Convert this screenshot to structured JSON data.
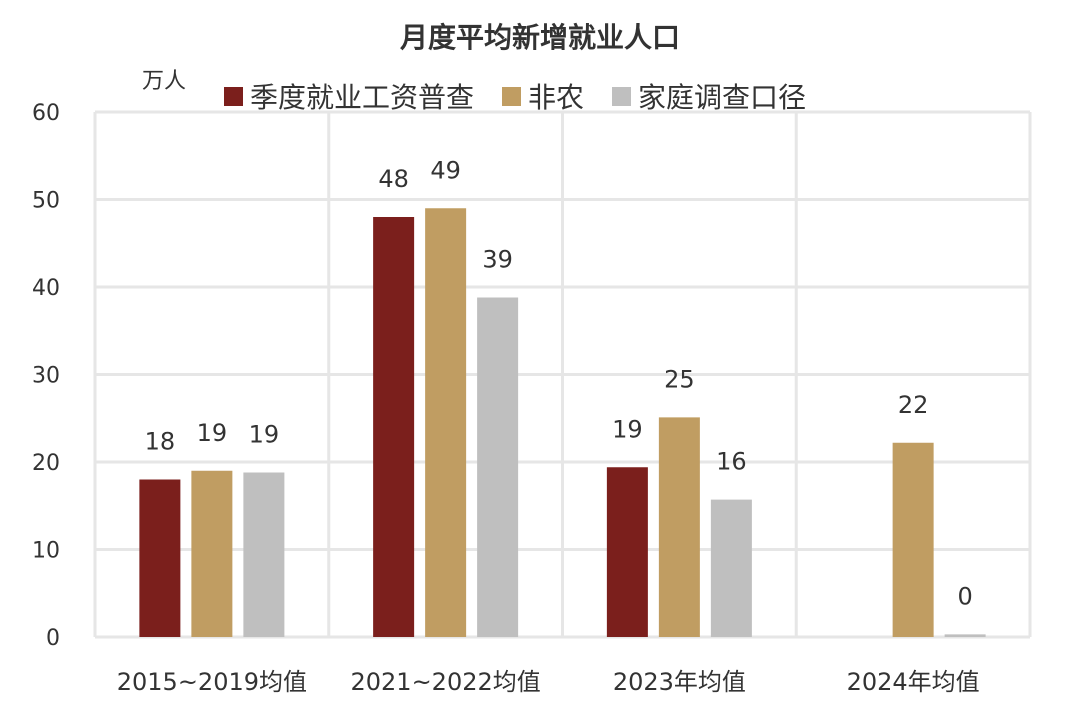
{
  "chart_data": {
    "type": "bar",
    "title": "月度平均新增就业人口",
    "ylabel": "万人",
    "ylim": [
      0,
      60
    ],
    "yticks": [
      0,
      10,
      20,
      30,
      40,
      50,
      60
    ],
    "categories": [
      "2015~2019均值",
      "2021~2022均值",
      "2023年均值",
      "2024年均值"
    ],
    "series": [
      {
        "name": "季度就业工资普查",
        "color": "#7B1F1C",
        "values": [
          18,
          48,
          19.4,
          null
        ],
        "labels": [
          "18",
          "48",
          "19",
          null
        ]
      },
      {
        "name": "非农",
        "color": "#C09D62",
        "values": [
          19,
          49,
          25.1,
          22.2
        ],
        "labels": [
          "19",
          "49",
          "25",
          "22"
        ]
      },
      {
        "name": "家庭调查口径",
        "color": "#BFBFBF",
        "values": [
          18.8,
          38.8,
          15.7,
          0.3
        ],
        "labels": [
          "19",
          "39",
          "16",
          "0"
        ]
      }
    ],
    "grid": true,
    "legend_position": "top"
  }
}
